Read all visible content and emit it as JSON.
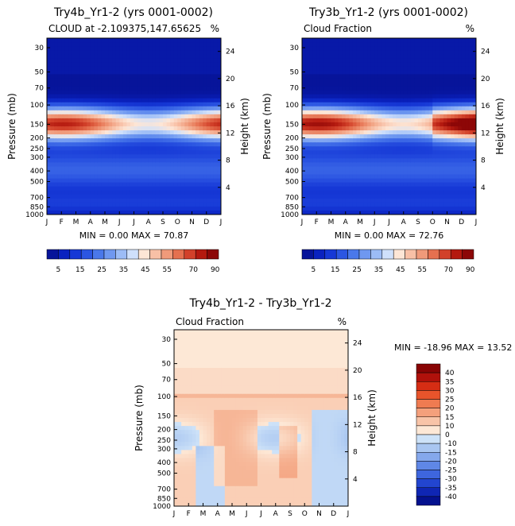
{
  "chart_data": [
    {
      "type": "heatmap",
      "title": "Try4b_Yr1-2 (yrs 0001-0002)",
      "subtitle_left": "CLOUD at -2.109375,147.65625",
      "subtitle_right": "%",
      "ylabel": "Pressure (mb)",
      "ylabel2": "Height (km)",
      "months": [
        "J",
        "F",
        "M",
        "A",
        "M",
        "J",
        "J",
        "A",
        "S",
        "O",
        "N",
        "D",
        "J"
      ],
      "pressure_ticks": [
        "30",
        "50",
        "70",
        "100",
        "150",
        "200",
        "250",
        "300",
        "400",
        "500",
        "700",
        "850",
        "1000"
      ],
      "height_ticks": [
        "24",
        "20",
        "16",
        "12",
        "8",
        "4"
      ],
      "minmax": "MIN =    0.00 MAX =   70.87",
      "colorbar": {
        "labels": [
          "5",
          "15",
          "25",
          "35",
          "45",
          "55",
          "70",
          "90"
        ]
      },
      "field": "try4b"
    },
    {
      "type": "heatmap",
      "title": "Try3b_Yr1-2 (yrs 0001-0002)",
      "subtitle_left": "Cloud Fraction",
      "subtitle_right": "%",
      "ylabel": "Pressure (mb)",
      "ylabel2": "Height (km)",
      "months": [
        "J",
        "F",
        "M",
        "A",
        "M",
        "J",
        "J",
        "A",
        "S",
        "O",
        "N",
        "D",
        "J"
      ],
      "pressure_ticks": [
        "30",
        "50",
        "70",
        "100",
        "150",
        "200",
        "250",
        "300",
        "400",
        "500",
        "700",
        "850",
        "1000"
      ],
      "height_ticks": [
        "24",
        "20",
        "16",
        "12",
        "8",
        "4"
      ],
      "minmax": "MIN =    0.00 MAX =   72.76",
      "colorbar": {
        "labels": [
          "5",
          "15",
          "25",
          "35",
          "45",
          "55",
          "70",
          "90"
        ]
      },
      "field": "try3b"
    },
    {
      "type": "heatmap",
      "title": "Try4b_Yr1-2 - Try3b_Yr1-2",
      "subtitle_left": "Cloud Fraction",
      "subtitle_right": "%",
      "ylabel": "Pressure (mb)",
      "ylabel2": "Height (km)",
      "months": [
        "J",
        "F",
        "M",
        "A",
        "M",
        "J",
        "J",
        "A",
        "S",
        "O",
        "N",
        "D",
        "J"
      ],
      "pressure_ticks": [
        "30",
        "50",
        "70",
        "100",
        "150",
        "200",
        "250",
        "300",
        "400",
        "500",
        "700",
        "850",
        "1000"
      ],
      "height_ticks": [
        "24",
        "20",
        "16",
        "12",
        "8",
        "4"
      ],
      "minmax": "MIN = -18.96 MAX =  13.52",
      "colorbar": {
        "labels": [
          "40",
          "35",
          "30",
          "25",
          "20",
          "15",
          "10",
          "0",
          "-10",
          "-15",
          "-20",
          "-25",
          "-30",
          "-35",
          "-40"
        ]
      },
      "field": "diff"
    }
  ],
  "colors": {
    "seq": [
      "#07149a",
      "#0a22c0",
      "#1638d6",
      "#2c56e2",
      "#4a78ea",
      "#6f98f0",
      "#9cbcf6",
      "#cfe0fb",
      "#fde6d6",
      "#f8c0a6",
      "#f09a7a",
      "#e5704f",
      "#d2412a",
      "#b4190f",
      "#8c0707"
    ],
    "div_neg": [
      "#cde2f8",
      "#a9c6f1",
      "#85a8ec",
      "#5f87e6",
      "#3e66de",
      "#2245d0",
      "#0f26b4",
      "#04118e"
    ],
    "div_pos": [
      "#fde8d6",
      "#f8c4a8",
      "#f4a07c",
      "#ef7b51",
      "#e8542b",
      "#d62d14",
      "#b0110b",
      "#880404"
    ]
  }
}
